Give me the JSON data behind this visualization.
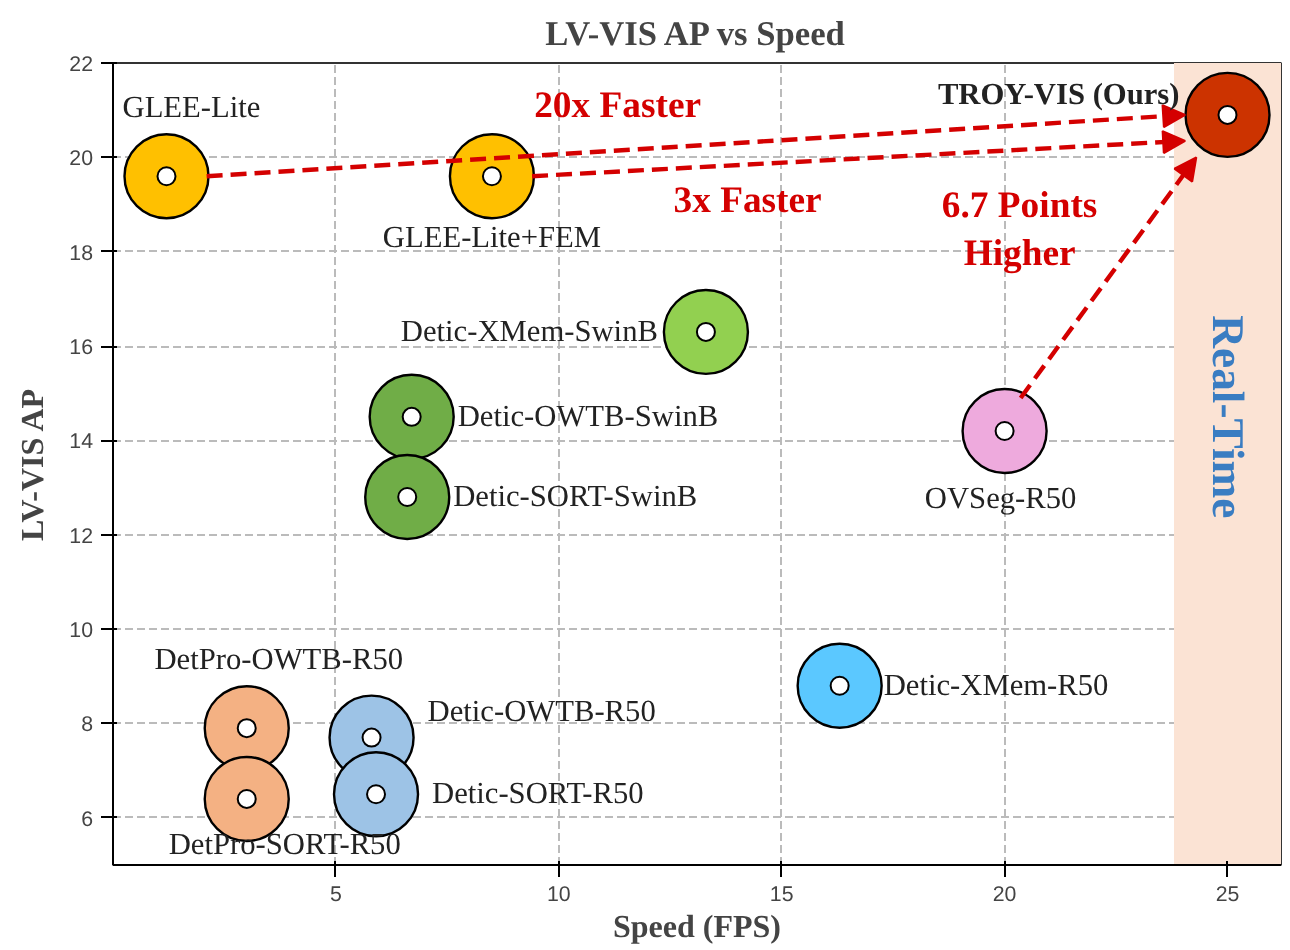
{
  "chart_data": {
    "type": "scatter",
    "title": "LV-VIS AP vs Speed",
    "xlabel": "Speed (FPS)",
    "ylabel": "LV-VIS AP",
    "xlim": [
      0,
      26.2
    ],
    "ylim": [
      5,
      22
    ],
    "xticks": [
      5,
      10,
      15,
      20,
      25
    ],
    "yticks": [
      6,
      8,
      10,
      12,
      14,
      16,
      18,
      20,
      22
    ],
    "grid": true,
    "marker": "circle",
    "series": [
      {
        "name": "GLEE-Lite",
        "color": "#ffc000",
        "x": [
          1.2
        ],
        "values": [
          19.6
        ]
      },
      {
        "name": "GLEE-Lite+FEM",
        "color": "#ffc000",
        "x": [
          8.5
        ],
        "values": [
          19.6
        ]
      },
      {
        "name": "Detic-XMem-SwinB",
        "color": "#92d050",
        "x": [
          13.3
        ],
        "values": [
          16.3
        ]
      },
      {
        "name": "Detic-OWTB-SwinB",
        "color": "#70ad47",
        "x": [
          6.7
        ],
        "values": [
          14.5
        ]
      },
      {
        "name": "Detic-SORT-SwinB",
        "color": "#70ad47",
        "x": [
          6.6
        ],
        "values": [
          12.8
        ]
      },
      {
        "name": "DetPro-OWTB-R50",
        "color": "#f4b183",
        "x": [
          3.0
        ],
        "values": [
          7.9
        ]
      },
      {
        "name": "DetPro-SORT-R50",
        "color": "#f4b183",
        "x": [
          3.0
        ],
        "values": [
          6.4
        ]
      },
      {
        "name": "Detic-OWTB-R50",
        "color": "#9dc3e6",
        "x": [
          5.8
        ],
        "values": [
          7.7
        ]
      },
      {
        "name": "Detic-SORT-R50",
        "color": "#9dc3e6",
        "x": [
          5.9
        ],
        "values": [
          6.5
        ]
      },
      {
        "name": "Detic-XMem-R50",
        "color": "#5bc8ff",
        "x": [
          16.3
        ],
        "values": [
          8.8
        ]
      },
      {
        "name": "OVSeg-R50",
        "color": "#eeaadd",
        "x": [
          20.0
        ],
        "values": [
          14.2
        ]
      },
      {
        "name": "TROY-VIS (Ours)",
        "color": "#cc3300",
        "x": [
          25.0
        ],
        "values": [
          20.9
        ]
      }
    ],
    "bands": [
      {
        "axis": "x",
        "from": 23.8,
        "to": 26.2,
        "label": "Real-Time",
        "color": "#fbe3d4"
      }
    ],
    "annotations": [
      "20x Faster",
      "3x Faster",
      "6.7 Points",
      "Higher"
    ]
  }
}
